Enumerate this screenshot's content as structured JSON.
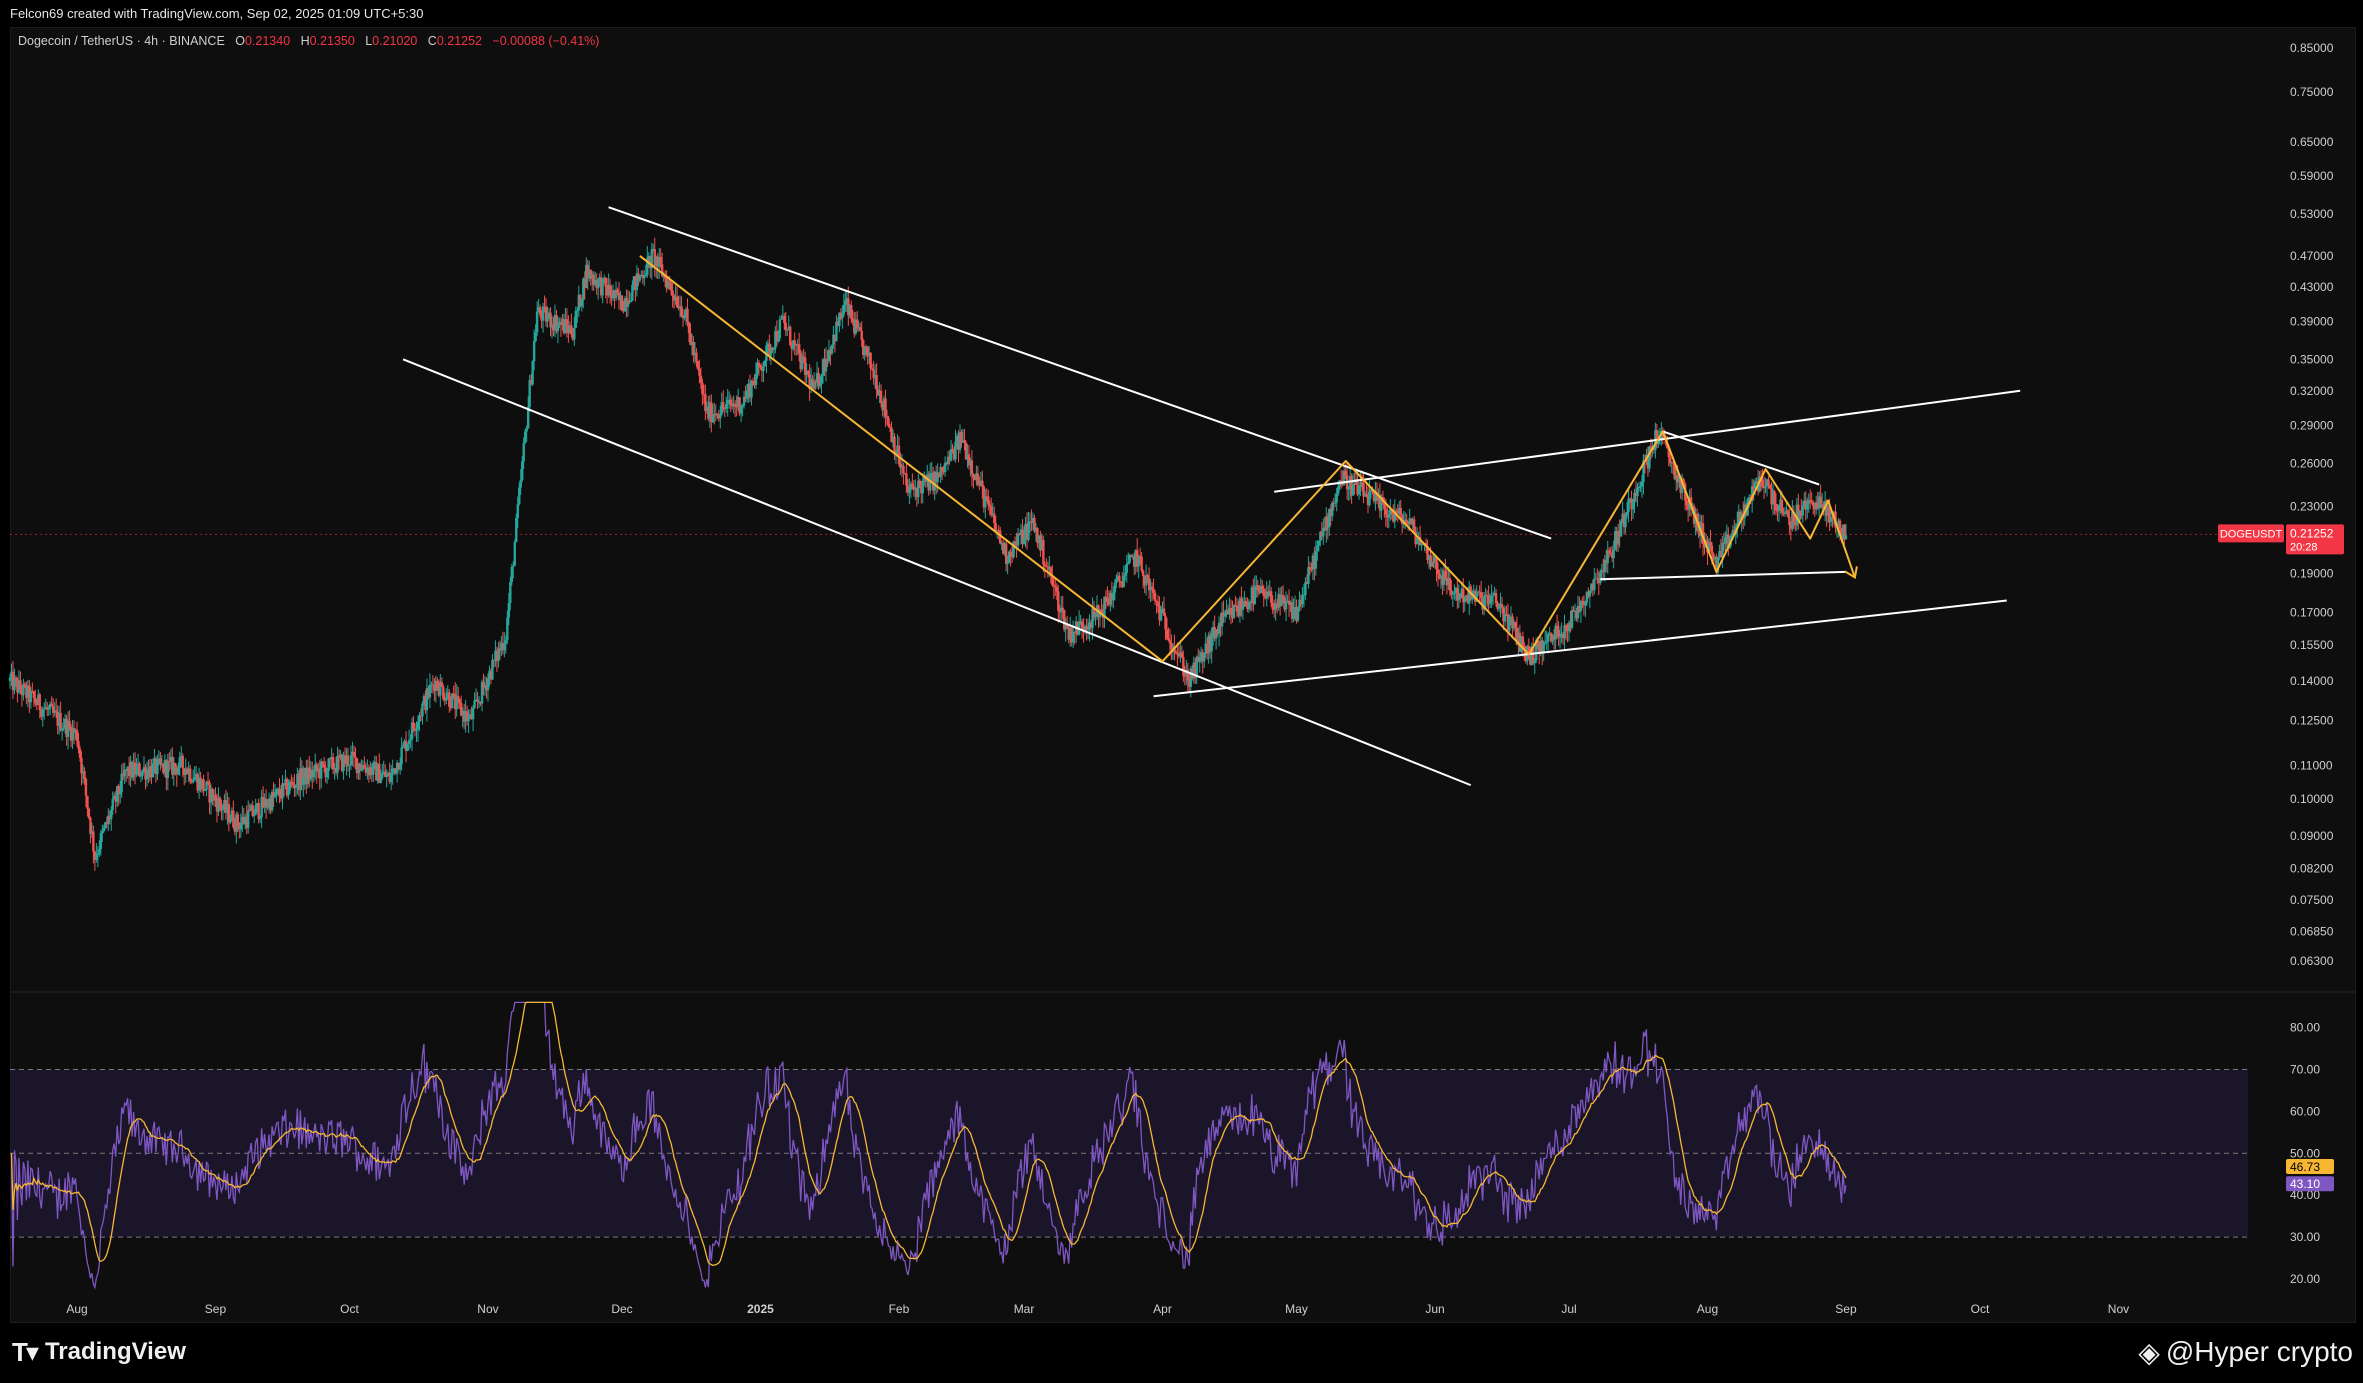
{
  "header": {
    "attribution": "Felcon69 created with TradingView.com, Sep 02, 2025 01:09 UTC+5:30"
  },
  "legend": {
    "symbol": "Dogecoin / TetherUS · 4h · BINANCE",
    "open_label": "O",
    "open": "0.21340",
    "high_label": "H",
    "high": "0.21350",
    "low_label": "L",
    "low": "0.21020",
    "close_label": "C",
    "close": "0.21252",
    "change": "−0.00088 (−0.41%)"
  },
  "price_tag": {
    "symbol": "DOGEUSDT",
    "price": "0.21252",
    "countdown": "20:28"
  },
  "rsi_tags": {
    "rsi_ma": "46.73",
    "rsi": "43.10"
  },
  "footer": {
    "logo_text": "TradingView",
    "watermark": "@Hyper  crypto"
  },
  "colors": {
    "background": "#0e0e0e",
    "up": "#26a69a",
    "down": "#ef5350",
    "trendline": "#ffffff",
    "zigzag": "#f7b733",
    "rsi_line": "#7e57c2",
    "rsi_ma": "#f7b733",
    "rsi_band": "#1e1830",
    "price_tag": "#f23645"
  },
  "chart_data": [
    {
      "type": "candlestick",
      "title": "Dogecoin / TetherUS · 4h · BINANCE",
      "scale": "log",
      "ylim": [
        0.058,
        0.9
      ],
      "y_ticks": [
        "0.85000",
        "0.75000",
        "0.65000",
        "0.59000",
        "0.53000",
        "0.47000",
        "0.43000",
        "0.39000",
        "0.35000",
        "0.32000",
        "0.29000",
        "0.26000",
        "0.23000",
        "0.19000",
        "0.17000",
        "0.15500",
        "0.14000",
        "0.12500",
        "0.11000",
        "0.10000",
        "0.09000",
        "0.08200",
        "0.07500",
        "0.06850",
        "0.06300"
      ],
      "x_ticks": [
        "Aug",
        "Sep",
        "Oct",
        "Nov",
        "Dec",
        "2025",
        "Feb",
        "Mar",
        "Apr",
        "May",
        "Jun",
        "Jul",
        "Aug",
        "Sep",
        "Oct",
        "Nov"
      ],
      "x_tick_dates": [
        "2024-08-01",
        "2024-09-01",
        "2024-10-01",
        "2024-11-01",
        "2024-12-01",
        "2025-01-01",
        "2025-02-01",
        "2025-03-01",
        "2025-04-01",
        "2025-05-01",
        "2025-06-01",
        "2025-07-01",
        "2025-08-01",
        "2025-09-01",
        "2025-10-01",
        "2025-11-01"
      ],
      "xlim": [
        "2024-07-17",
        "2025-11-30"
      ],
      "price_path": [
        [
          "2024-07-17",
          0.14
        ],
        [
          "2024-08-01",
          0.12
        ],
        [
          "2024-08-05",
          0.085
        ],
        [
          "2024-08-12",
          0.108
        ],
        [
          "2024-08-25",
          0.11
        ],
        [
          "2024-09-06",
          0.093
        ],
        [
          "2024-09-20",
          0.106
        ],
        [
          "2024-10-01",
          0.112
        ],
        [
          "2024-10-10",
          0.106
        ],
        [
          "2024-10-20",
          0.14
        ],
        [
          "2024-10-28",
          0.125
        ],
        [
          "2024-11-05",
          0.16
        ],
        [
          "2024-11-12",
          0.4
        ],
        [
          "2024-11-20",
          0.38
        ],
        [
          "2024-11-23",
          0.45
        ],
        [
          "2024-12-01",
          0.41
        ],
        [
          "2024-12-08",
          0.47
        ],
        [
          "2024-12-15",
          0.4
        ],
        [
          "2024-12-20",
          0.3
        ],
        [
          "2024-12-28",
          0.31
        ],
        [
          "2025-01-06",
          0.39
        ],
        [
          "2025-01-13",
          0.32
        ],
        [
          "2025-01-20",
          0.41
        ],
        [
          "2025-01-27",
          0.33
        ],
        [
          "2025-02-03",
          0.24
        ],
        [
          "2025-02-10",
          0.25
        ],
        [
          "2025-02-15",
          0.28
        ],
        [
          "2025-02-25",
          0.2
        ],
        [
          "2025-03-03",
          0.22
        ],
        [
          "2025-03-11",
          0.16
        ],
        [
          "2025-03-18",
          0.17
        ],
        [
          "2025-03-26",
          0.2
        ],
        [
          "2025-04-07",
          0.14
        ],
        [
          "2025-04-14",
          0.165
        ],
        [
          "2025-04-22",
          0.18
        ],
        [
          "2025-05-01",
          0.17
        ],
        [
          "2025-05-11",
          0.25
        ],
        [
          "2025-05-20",
          0.23
        ],
        [
          "2025-05-26",
          0.22
        ],
        [
          "2025-06-05",
          0.18
        ],
        [
          "2025-06-15",
          0.175
        ],
        [
          "2025-06-22",
          0.15
        ],
        [
          "2025-07-01",
          0.165
        ],
        [
          "2025-07-10",
          0.2
        ],
        [
          "2025-07-21",
          0.285
        ],
        [
          "2025-07-28",
          0.23
        ],
        [
          "2025-08-03",
          0.195
        ],
        [
          "2025-08-13",
          0.25
        ],
        [
          "2025-08-19",
          0.22
        ],
        [
          "2025-08-25",
          0.235
        ],
        [
          "2025-09-01",
          0.21252
        ]
      ]
    },
    {
      "type": "line",
      "title": "RSI",
      "ylim": [
        15,
        88
      ],
      "y_ticks": [
        "80.00",
        "70.00",
        "60.00",
        "50.00",
        "40.00",
        "30.00",
        "20.00"
      ],
      "band": [
        30,
        70
      ],
      "midline": 50,
      "last_rsi": 43.1,
      "last_ma": 46.73
    }
  ],
  "annotations": {
    "trendlines": [
      [
        [
          "2024-11-28",
          0.54
        ],
        [
          "2025-06-27",
          0.21
        ]
      ],
      [
        [
          "2024-10-13",
          0.35
        ],
        [
          "2025-06-09",
          0.104
        ]
      ],
      [
        [
          "2025-04-26",
          0.24
        ],
        [
          "2025-10-10",
          0.32
        ]
      ],
      [
        [
          "2025-03-30",
          0.134
        ],
        [
          "2025-10-07",
          0.176
        ]
      ],
      [
        [
          "2025-07-08",
          0.187
        ],
        [
          "2025-09-01",
          0.191
        ]
      ],
      [
        [
          "2025-07-22",
          0.285
        ],
        [
          "2025-08-26",
          0.245
        ]
      ]
    ],
    "zigzag": [
      [
        "2024-12-05",
        0.47
      ],
      [
        "2025-04-01",
        0.148
      ],
      [
        "2025-05-12",
        0.262
      ],
      [
        "2025-06-22",
        0.151
      ],
      [
        "2025-07-22",
        0.285
      ],
      [
        "2025-08-03",
        0.191
      ],
      [
        "2025-08-14",
        0.256
      ],
      [
        "2025-08-24",
        0.21
      ],
      [
        "2025-08-28",
        0.234
      ],
      [
        "2025-09-03",
        0.188
      ]
    ]
  }
}
